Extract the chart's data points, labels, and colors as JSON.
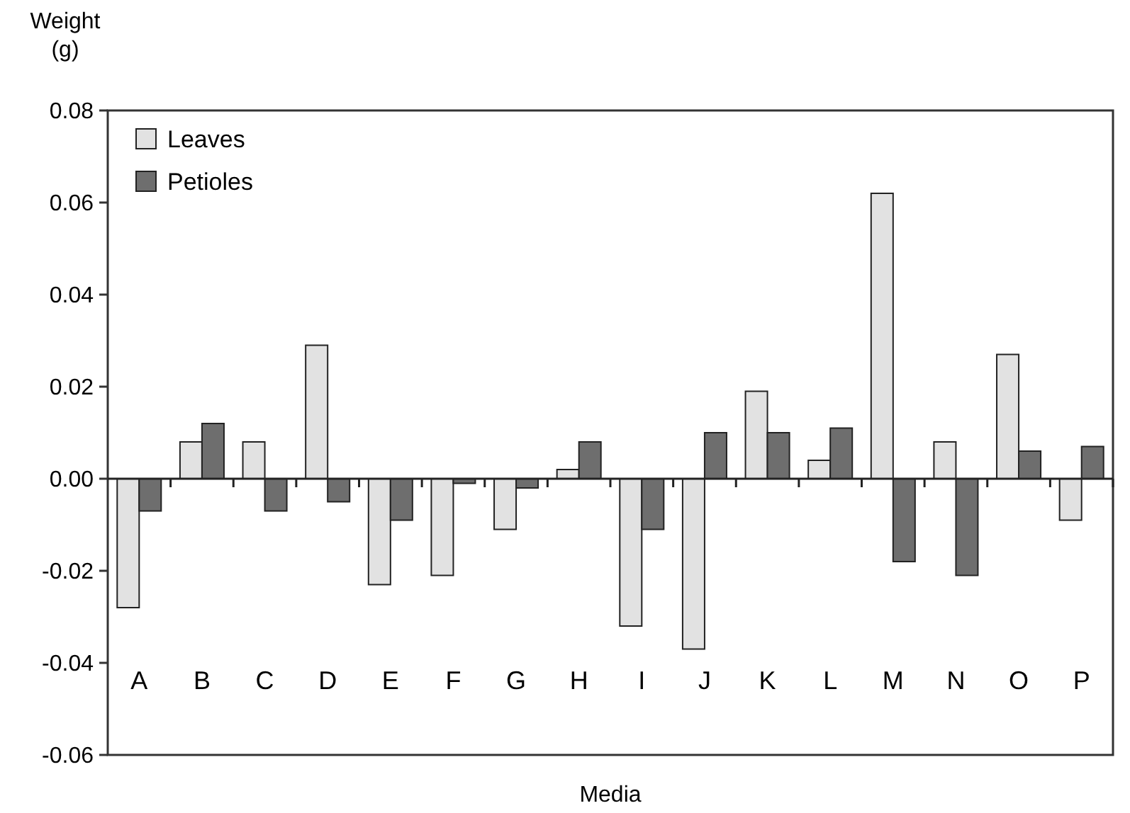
{
  "chart_data": {
    "type": "bar",
    "xlabel": "Media",
    "ylabel": "Weight (g)",
    "categories": [
      "A",
      "B",
      "C",
      "D",
      "E",
      "F",
      "G",
      "H",
      "I",
      "J",
      "K",
      "L",
      "M",
      "N",
      "O",
      "P"
    ],
    "series": [
      {
        "name": "Leaves",
        "color": "#e2e2e2",
        "values": [
          -0.028,
          0.008,
          0.008,
          0.029,
          -0.023,
          -0.021,
          -0.011,
          0.002,
          -0.032,
          -0.037,
          0.019,
          0.004,
          0.062,
          0.008,
          0.027,
          -0.009
        ]
      },
      {
        "name": "Petioles",
        "color": "#6e6e6e",
        "values": [
          -0.007,
          0.012,
          -0.007,
          -0.005,
          -0.009,
          -0.001,
          -0.002,
          0.008,
          -0.011,
          0.01,
          0.01,
          0.011,
          -0.018,
          -0.021,
          0.006,
          0.007
        ]
      }
    ],
    "ylim": [
      -0.06,
      0.08
    ],
    "yticks": [
      {
        "value": -0.06,
        "label": "-0.06"
      },
      {
        "value": -0.04,
        "label": "-0.04"
      },
      {
        "value": -0.02,
        "label": "-0.02"
      },
      {
        "value": 0,
        "label": "0.00"
      },
      {
        "value": 0.02,
        "label": "0.02"
      },
      {
        "value": 0.04,
        "label": "0.04"
      },
      {
        "value": 0.06,
        "label": "0.06"
      },
      {
        "value": 0.08,
        "label": "0.08"
      }
    ],
    "legend": "top left"
  }
}
